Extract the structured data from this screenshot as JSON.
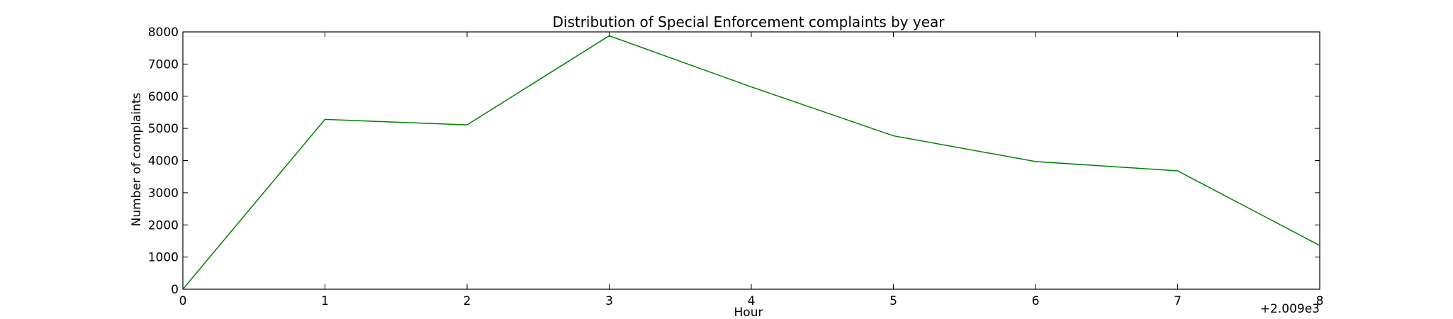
{
  "chart_data": {
    "type": "line",
    "title": "Distribution of  Special Enforcement complaints by year",
    "xlabel": "Hour",
    "ylabel": "Number of complaints",
    "x_offset_label": "+2.009e3",
    "xlim": [
      0,
      8
    ],
    "ylim": [
      0,
      8000
    ],
    "x_ticks": [
      0,
      1,
      2,
      3,
      4,
      5,
      6,
      7,
      8
    ],
    "y_ticks": [
      0,
      1000,
      2000,
      3000,
      4000,
      5000,
      6000,
      7000,
      8000
    ],
    "grid": false,
    "series": [
      {
        "color": "#008000",
        "x": [
          0,
          1,
          2,
          3,
          4,
          5,
          6,
          7,
          8
        ],
        "y": [
          0,
          5280,
          5110,
          7880,
          6290,
          4770,
          3970,
          3680,
          1360
        ]
      }
    ]
  }
}
